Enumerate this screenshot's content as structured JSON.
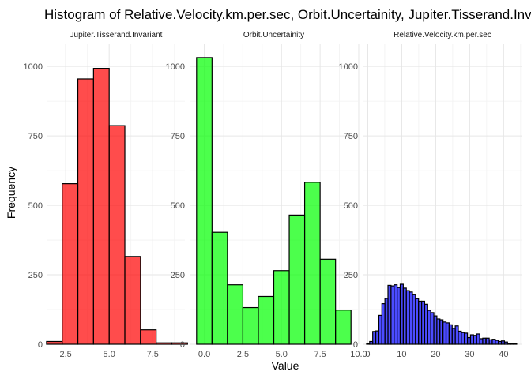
{
  "chart_data": {
    "type": "bar",
    "title": "Histogram of Relative.Velocity.km.per.sec, Orbit.Uncertainity, Jupiter.Tisserand.Invariant",
    "xlabel": "Value",
    "ylabel": "Frequency",
    "grid": true,
    "ylim": [
      0,
      1080
    ],
    "yticks": [
      0,
      250,
      500,
      750,
      1000
    ],
    "panels": [
      {
        "name": "Jupiter.Tisserand.Invariant",
        "fill": "#ff0000",
        "outline": "#000000",
        "xlim": [
          1.45,
          9.35
        ],
        "xticks": [
          2.5,
          5.0,
          7.5
        ],
        "xtick_labels": [
          "2.5",
          "5.0",
          "7.5"
        ],
        "bin_width": 0.9,
        "bin_centers": [
          1.85,
          2.75,
          3.65,
          4.55,
          5.45,
          6.35,
          7.25,
          8.15,
          9.05
        ],
        "values": [
          10,
          578,
          955,
          993,
          787,
          316,
          52,
          5,
          5
        ]
      },
      {
        "name": "Orbit.Uncertainity",
        "fill": "#00ff00",
        "outline": "#000000",
        "xlim": [
          -0.95,
          9.95
        ],
        "xticks": [
          0.0,
          2.5,
          5.0,
          7.5,
          10.0
        ],
        "xtick_labels": [
          "0.0",
          "2.5",
          "5.0",
          "7.5",
          "10.0"
        ],
        "bin_width": 1.0,
        "bin_centers": [
          0,
          1,
          2,
          3,
          4,
          5,
          6,
          7,
          8,
          9
        ],
        "values": [
          1032,
          403,
          214,
          132,
          172,
          265,
          465,
          583,
          306,
          123
        ]
      },
      {
        "name": "Relative.Velocity.km.per.sec",
        "fill": "#0000ff",
        "outline": "#000000",
        "xlim": [
          -1.5,
          45.5
        ],
        "xticks": [
          0,
          10,
          20,
          30,
          40
        ],
        "xtick_labels": [
          "0",
          "10",
          "20",
          "30",
          "40"
        ],
        "bin_width": 0.9,
        "bin_centers": [
          0.1,
          1.0,
          1.9,
          2.8,
          3.7,
          4.6,
          5.5,
          6.4,
          7.3,
          8.2,
          9.1,
          10.0,
          10.9,
          11.8,
          12.7,
          13.6,
          14.5,
          15.4,
          16.3,
          17.2,
          18.1,
          19.0,
          19.9,
          20.8,
          21.7,
          22.6,
          23.5,
          24.4,
          25.3,
          26.2,
          27.1,
          28.0,
          28.9,
          29.8,
          30.7,
          31.6,
          32.5,
          33.4,
          34.3,
          35.3,
          36.2,
          37.1,
          38.0,
          38.9,
          39.8,
          40.7,
          41.6,
          42.5,
          43.4
        ],
        "values": [
          3,
          10,
          46,
          48,
          104,
          146,
          165,
          212,
          210,
          214,
          204,
          216,
          202,
          193,
          188,
          180,
          164,
          155,
          155,
          144,
          122,
          114,
          102,
          91,
          88,
          80,
          77,
          70,
          57,
          66,
          47,
          42,
          40,
          24,
          34,
          32,
          37,
          20,
          22,
          22,
          16,
          18,
          14,
          10,
          12,
          8,
          3,
          3,
          3
        ]
      }
    ]
  }
}
